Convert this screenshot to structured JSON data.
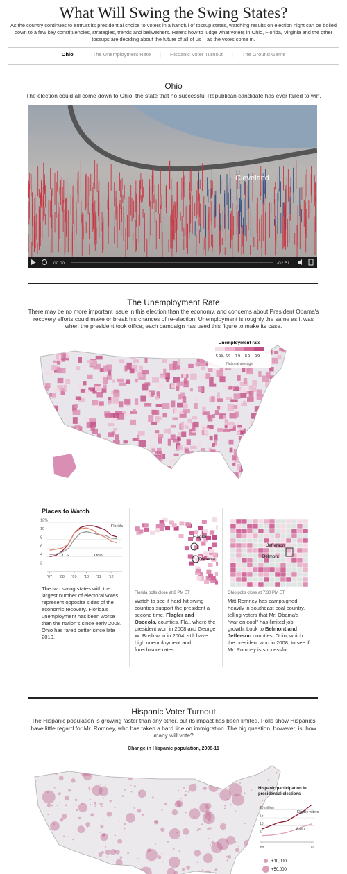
{
  "header": {
    "title": "What Will Swing the Swing States?",
    "intro": "As the country continues to entrust its presidential choice to voters in a handful of tossup states, watching results on election night can be boiled down to a few key constituencies, strategies, trends and bellwethers. Here's how to judge what voters in Ohio, Florida, Virginia and the other tossups are deciding about the future of all of us – as the votes come in."
  },
  "nav": [
    "Ohio",
    "The Unemployment Rate",
    "Hispanic Voter Turnout",
    "The Ground Game"
  ],
  "ohio": {
    "title": "Ohio",
    "text": "The election could all come down to Ohio, the state that no successful Republican candidate has ever failed to win.",
    "video": {
      "label": "Cleveland",
      "time": "00:00",
      "remaining": "-02:51"
    }
  },
  "unemployment": {
    "title": "The Unemployment Rate",
    "text": "There may be no more important issue in this election than the economy, and concerns about President Obama's recovery efforts could make or break his chances of re-election. Unemployment is roughly the same as it was when the president took office; each campaign has used this figure to make its case.",
    "legend": {
      "title": "Unemployment rate",
      "ticks": [
        "5.9%",
        "6.9",
        "7.9",
        "8.9",
        "9.9"
      ],
      "note": "National average"
    }
  },
  "places": {
    "title": "Places to Watch",
    "chart": {
      "type": "line",
      "x": [
        2007,
        2007.5,
        2008,
        2008.5,
        2009,
        2009.5,
        2010,
        2010.5,
        2011,
        2011.5,
        2012,
        2012.5
      ],
      "xlim": [
        2006.8,
        2012.9
      ],
      "xticks": [
        {
          "value": 2007,
          "label": "'07"
        },
        {
          "value": 2008,
          "label": "'08"
        },
        {
          "value": 2009,
          "label": "'09"
        },
        {
          "value": 2010,
          "label": "'10"
        },
        {
          "value": 2011,
          "label": "'11"
        },
        {
          "value": 2012,
          "label": "'12"
        }
      ],
      "ylim": [
        0.5,
        12.5
      ],
      "yticks": [
        {
          "value": 12,
          "label": "12%"
        },
        10,
        8,
        6,
        4,
        2
      ],
      "series": [
        {
          "name": "Florida",
          "color": "#8c1c30",
          "values": [
            4.0,
            4.3,
            5.2,
            6.8,
            9.5,
            10.8,
            11.2,
            11.2,
            10.8,
            10.3,
            9.0,
            8.6
          ]
        },
        {
          "name": "U.S.",
          "color": "#999999",
          "values": [
            4.5,
            4.6,
            5.0,
            5.8,
            8.0,
            9.5,
            9.8,
            9.5,
            9.1,
            9.0,
            8.3,
            8.2
          ]
        },
        {
          "name": "Ohio",
          "color": "#e08a78",
          "values": [
            5.5,
            5.7,
            6.0,
            6.8,
            9.5,
            10.5,
            10.7,
            10.2,
            9.2,
            8.6,
            7.6,
            7.2
          ]
        }
      ]
    },
    "text": "The two swing states with the largest number of electoral votes represent opposite sides of the economic recovery. Florida's unemployment has been worse than the nation's since early 2008. Ohio has fared better since late 2010."
  },
  "florida": {
    "labels": [
      "Flagler",
      "Osceola"
    ],
    "note": "Florida polls close at 8 PM ET",
    "text": [
      "Watch to see if hard-hit swing counties support the president a second time. ",
      "Flagler and Osceola,",
      " counties, Fla., where the president won in 2008 and George W. Bush won in 2004, still have high unemployment and foreclosure rates."
    ]
  },
  "ohio_map": {
    "labels": [
      "Jefferson",
      "Belmont"
    ],
    "note": "Ohio polls close at 7:30 PM ET",
    "text": [
      "Mitt Romney has campaigned heavily in southeast coal country, telling voters that Mr. Obama's “war on coal” has limited job growth. Look to ",
      "Belmont and Jefferson",
      " counties, Ohio, which the president won in 2008, to see if Mr. Romney is successful."
    ]
  },
  "hispanic": {
    "title": "Hispanic Voter Turnout",
    "text": "The Hispanic population is growing faster than any other, but its impact has been limited. Polls show Hispanics have little regard for Mr. Romney, who has taken a hard line on immigration. The big question, however, is: how many will vote?",
    "map_title": "Change in Hispanic population, 2008-11",
    "inset": {
      "title": "Hispanic participation in presidential elections",
      "chart": {
        "type": "line",
        "x": [
          1988,
          1992,
          1996,
          2000,
          2004,
          2008,
          2012
        ],
        "xlim": [
          1987,
          2013
        ],
        "xticks": [
          {
            "value": 1988,
            "label": "'88"
          },
          {
            "value": 2012,
            "label": "'12"
          }
        ],
        "ylim": [
          0,
          24
        ],
        "yticks": [
          {
            "value": 20,
            "label": "20 million"
          },
          15,
          10,
          5
        ],
        "series": [
          {
            "name": "Eligible voters",
            "color": "#8c1c30",
            "values": [
              8,
              10,
              12,
              13,
              16,
              19,
              23
            ]
          },
          {
            "name": "Voters",
            "color": "#e0a0b0",
            "values": [
              4,
              4.2,
              4.9,
              5.9,
              7.6,
              9.7,
              11.2
            ]
          }
        ]
      }
    },
    "legend": [
      "+10,000",
      "+50,000"
    ]
  }
}
